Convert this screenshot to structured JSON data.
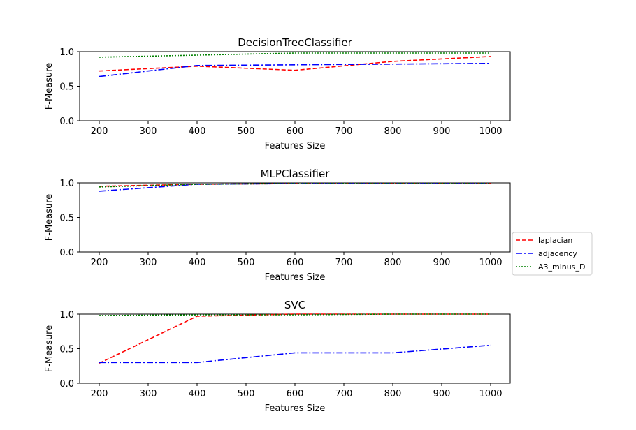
{
  "chart_data": [
    {
      "type": "line",
      "title": "DecisionTreeClassifier",
      "xlabel": "Features Size",
      "ylabel": "F-Measure",
      "xlim": [
        160,
        1040
      ],
      "ylim": [
        0,
        1
      ],
      "xticks": [
        200,
        300,
        400,
        500,
        600,
        700,
        800,
        900,
        1000
      ],
      "yticks": [
        0.0,
        0.5,
        1.0
      ],
      "ytick_labels": [
        "0.0",
        "0.5",
        "1.0"
      ],
      "x": [
        200,
        400,
        600,
        800,
        1000
      ],
      "series": [
        {
          "name": "laplacian",
          "values": [
            0.72,
            0.79,
            0.73,
            0.86,
            0.93
          ]
        },
        {
          "name": "adjacency",
          "values": [
            0.64,
            0.8,
            0.81,
            0.82,
            0.83
          ]
        },
        {
          "name": "A3_minus_D",
          "values": [
            0.92,
            0.95,
            0.98,
            0.98,
            0.98
          ]
        }
      ]
    },
    {
      "type": "line",
      "title": "MLPClassifier",
      "xlabel": "Features Size",
      "ylabel": "F-Measure",
      "xlim": [
        160,
        1040
      ],
      "ylim": [
        0,
        1
      ],
      "xticks": [
        200,
        300,
        400,
        500,
        600,
        700,
        800,
        900,
        1000
      ],
      "yticks": [
        0.0,
        0.5,
        1.0
      ],
      "ytick_labels": [
        "0.0",
        "0.5",
        "1.0"
      ],
      "x": [
        200,
        400,
        600,
        800,
        1000
      ],
      "series": [
        {
          "name": "laplacian",
          "values": [
            0.95,
            0.98,
            0.99,
            0.99,
            0.99
          ]
        },
        {
          "name": "adjacency",
          "values": [
            0.88,
            0.98,
            0.99,
            0.99,
            0.99
          ]
        },
        {
          "name": "A3_minus_D",
          "values": [
            0.94,
            0.98,
            0.99,
            0.99,
            0.99
          ]
        }
      ]
    },
    {
      "type": "line",
      "title": "SVC",
      "xlabel": "Features Size",
      "ylabel": "F-Measure",
      "xlim": [
        160,
        1040
      ],
      "ylim": [
        0,
        1
      ],
      "xticks": [
        200,
        300,
        400,
        500,
        600,
        700,
        800,
        900,
        1000
      ],
      "yticks": [
        0.0,
        0.5,
        1.0
      ],
      "ytick_labels": [
        "0.0",
        "0.5",
        "1.0"
      ],
      "x": [
        200,
        400,
        600,
        800,
        1000
      ],
      "series": [
        {
          "name": "laplacian",
          "values": [
            0.29,
            0.97,
            1.0,
            1.0,
            1.0
          ]
        },
        {
          "name": "adjacency",
          "values": [
            0.3,
            0.3,
            0.44,
            0.44,
            0.55
          ]
        },
        {
          "name": "A3_minus_D",
          "values": [
            0.98,
            0.99,
            0.99,
            1.0,
            1.0
          ]
        }
      ]
    }
  ],
  "legend": {
    "placement": "right",
    "entries": [
      {
        "label": "laplacian",
        "color": "#ff0000",
        "style": "dashed"
      },
      {
        "label": "adjacency",
        "color": "#0000ff",
        "style": "dashdot"
      },
      {
        "label": "A3_minus_D",
        "color": "#008000",
        "style": "dotted"
      }
    ]
  }
}
